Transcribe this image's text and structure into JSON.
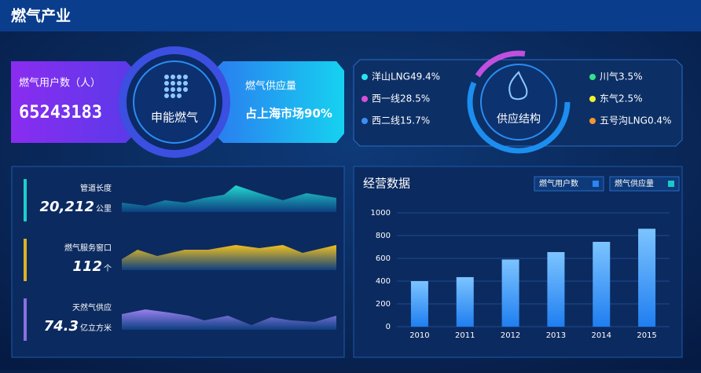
{
  "header": {
    "title": "燃气产业"
  },
  "company": {
    "users_label": "燃气用户数（人）",
    "users_value": "65243183",
    "name": "申能燃气",
    "supply_label": "燃气供应量",
    "supply_value": "占上海市场90%"
  },
  "supply_structure": {
    "title": "供应结构",
    "left": [
      {
        "label": "洋山LNG49.4%",
        "color": "#2ee0f0"
      },
      {
        "label": "西一线28.5%",
        "color": "#d84fd8"
      },
      {
        "label": "西二线15.7%",
        "color": "#3d8ff5"
      }
    ],
    "right": [
      {
        "label": "川气3.5%",
        "color": "#37e08a"
      },
      {
        "label": "东气2.5%",
        "color": "#f0f030"
      },
      {
        "label": "五号沟LNG0.4%",
        "color": "#f5962e"
      }
    ]
  },
  "indicators": [
    {
      "label": "管道长度",
      "value": "20,212",
      "unit": "公里",
      "color": "#1ecfc8"
    },
    {
      "label": "燃气服务窗口",
      "value": "112",
      "unit": "个",
      "color": "#e0b020"
    },
    {
      "label": "天然气供应",
      "value": "74.3",
      "unit": "亿立方米",
      "color": "#8a70e0"
    }
  ],
  "chart_data": {
    "type": "bar",
    "title": "经营数据",
    "legend": [
      {
        "name": "燃气用户数",
        "color": "#2a86f0"
      },
      {
        "name": "燃气供应量",
        "color": "#1ec8c8"
      }
    ],
    "categories": [
      "2010",
      "2011",
      "2012",
      "2013",
      "2014",
      "2015"
    ],
    "series": [
      {
        "name": "燃气用户数",
        "color": "#2a86f0",
        "values": [
          400,
          435,
          590,
          655,
          745,
          860
        ]
      }
    ],
    "ylim": [
      0,
      1000
    ],
    "yticks": [
      0,
      200,
      400,
      600,
      800,
      1000
    ],
    "grid": true
  }
}
